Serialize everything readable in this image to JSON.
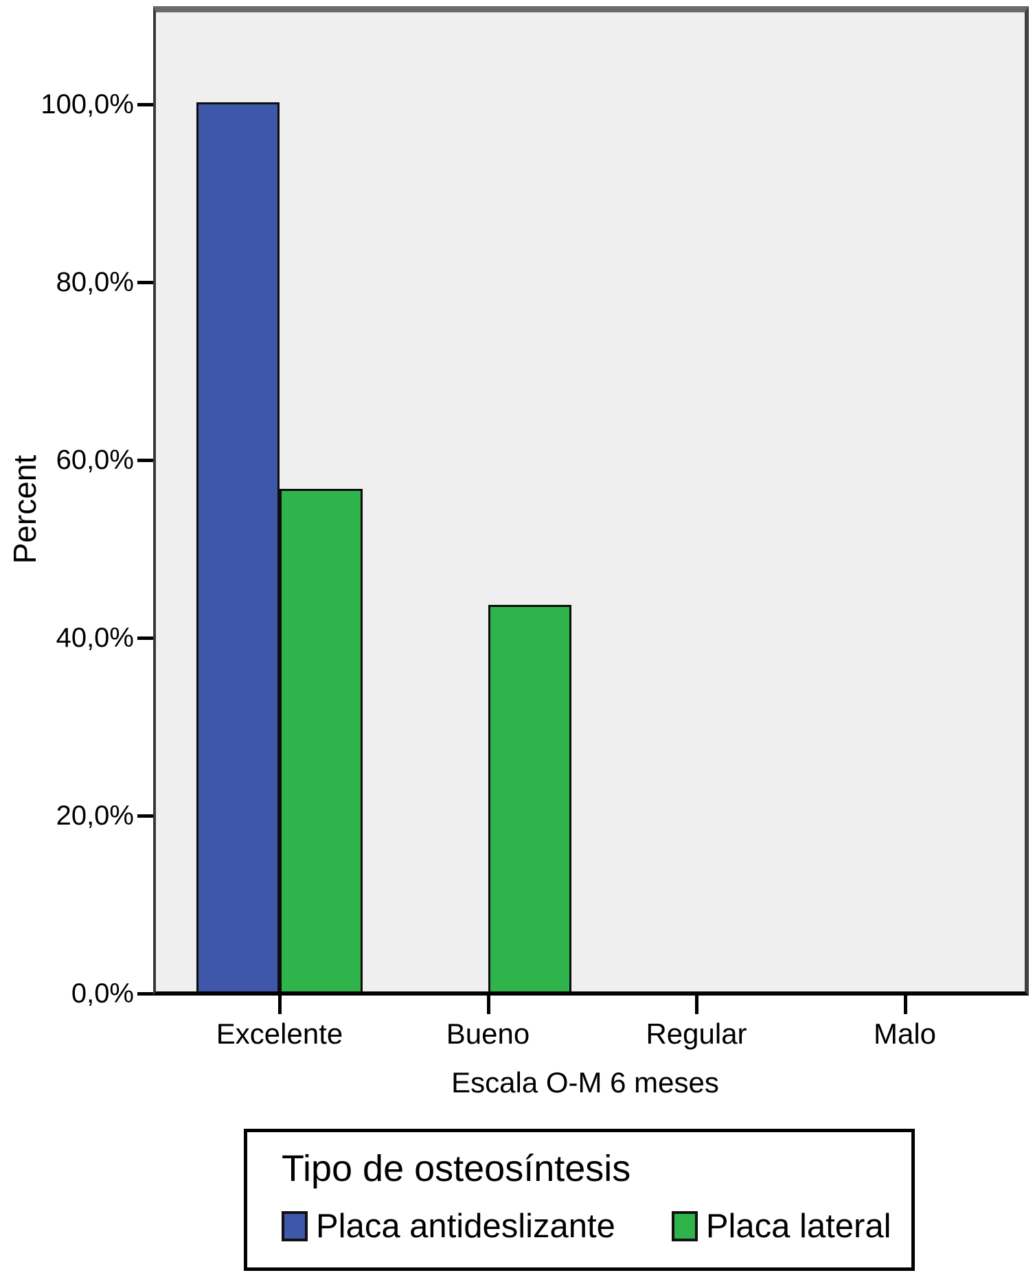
{
  "chart_data": {
    "type": "bar",
    "title": "",
    "categories": [
      "Excelente",
      "Bueno",
      "Regular",
      "Malo"
    ],
    "series": [
      {
        "name": "Placa antideslizante",
        "color": "#3f57a9",
        "values": [
          100.0,
          0.0,
          0.0,
          0.0
        ]
      },
      {
        "name": "Placa lateral",
        "color": "#2eb44a",
        "values": [
          56.5,
          43.5,
          0.0,
          0.0
        ]
      }
    ],
    "xlabel": "Escala O-M 6 meses",
    "ylabel": "Percent",
    "ylim": [
      0,
      110
    ],
    "yticks": [
      {
        "value": 0,
        "label": "0,0%"
      },
      {
        "value": 20,
        "label": "20,0%"
      },
      {
        "value": 40,
        "label": "40,0%"
      },
      {
        "value": 60,
        "label": "60,0%"
      },
      {
        "value": 80,
        "label": "80,0%"
      },
      {
        "value": 100,
        "label": "100,0%"
      }
    ],
    "legend": {
      "title": "Tipo de osteosíntesis",
      "position": "bottom"
    },
    "grid": false,
    "plot_background": "#efefef",
    "bar_outline": "#000000"
  }
}
